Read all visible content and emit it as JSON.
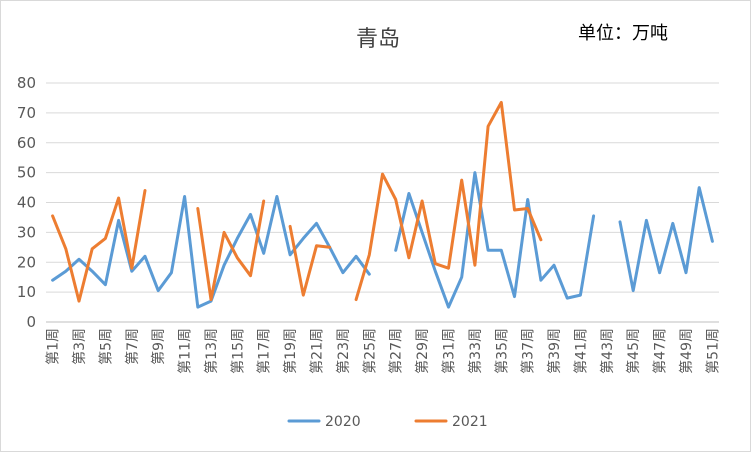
{
  "chart_data": {
    "type": "line",
    "title": "青岛",
    "unit_label": "单位：万吨",
    "xlabel": "",
    "ylabel": "",
    "ylim": [
      0,
      80
    ],
    "yticks": [
      0,
      10,
      20,
      30,
      40,
      50,
      60,
      70,
      80
    ],
    "grid": true,
    "legend_position": "bottom",
    "categories": [
      "第1周",
      "第2周",
      "第3周",
      "第4周",
      "第5周",
      "第6周",
      "第7周",
      "第8周",
      "第9周",
      "第10周",
      "第11周",
      "第12周",
      "第13周",
      "第14周",
      "第15周",
      "第16周",
      "第17周",
      "第18周",
      "第19周",
      "第20周",
      "第21周",
      "第22周",
      "第23周",
      "第24周",
      "第25周",
      "第26周",
      "第27周",
      "第28周",
      "第29周",
      "第30周",
      "第31周",
      "第32周",
      "第33周",
      "第34周",
      "第35周",
      "第36周",
      "第37周",
      "第38周",
      "第39周",
      "第40周",
      "第41周",
      "第42周",
      "第43周",
      "第44周",
      "第45周",
      "第46周",
      "第47周",
      "第48周",
      "第49周",
      "第50周",
      "第51周"
    ],
    "xtick_labels": [
      "第1周",
      "第3周",
      "第5周",
      "第7周",
      "第9周",
      "第11周",
      "第13周",
      "第15周",
      "第17周",
      "第19周",
      "第21周",
      "第23周",
      "第25周",
      "第27周",
      "第29周",
      "第31周",
      "第33周",
      "第35周",
      "第37周",
      "第39周",
      "第41周",
      "第43周",
      "第45周",
      "第47周",
      "第49周",
      "第51周"
    ],
    "series": [
      {
        "name": "2020",
        "color": "#5B9BD5",
        "values": [
          14,
          17,
          21,
          17,
          12.5,
          34,
          17,
          22,
          10.5,
          16.5,
          42,
          5,
          7,
          19,
          28,
          36,
          23,
          42,
          22.5,
          28,
          33,
          25,
          16.5,
          22,
          16,
          null,
          24,
          43,
          30,
          17,
          5,
          15,
          50,
          24,
          24,
          8.5,
          41,
          14,
          19,
          8,
          9,
          35.5,
          null,
          33.5,
          10.5,
          34,
          16.5,
          33,
          16.5,
          45,
          27
        ]
      },
      {
        "name": "2021",
        "color": "#ED7D31",
        "values": [
          35.5,
          24.5,
          7,
          24.5,
          28,
          41.5,
          18,
          44,
          null,
          null,
          null,
          38,
          7.5,
          30,
          21.5,
          15.5,
          40.5,
          null,
          32,
          9,
          25.5,
          25,
          null,
          7.5,
          22.5,
          49.5,
          41,
          21.5,
          40.5,
          19.5,
          18,
          47.5,
          19,
          65.5,
          73.5,
          37.5,
          38,
          27.5,
          null,
          null,
          null,
          null,
          null,
          null,
          null,
          null,
          null,
          null,
          null,
          null,
          null
        ]
      }
    ]
  }
}
